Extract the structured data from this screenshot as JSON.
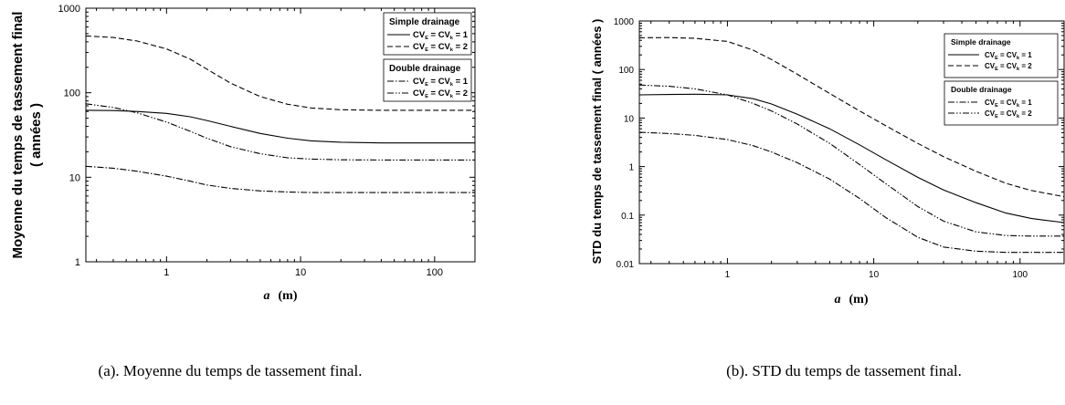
{
  "chart_data": [
    {
      "type": "line",
      "panel": "a",
      "ylabel_line1": "Moyenne du temps de tassement final",
      "ylabel_line2": "( années )",
      "xlabel_var": "a",
      "xlabel_unit": "(m)",
      "xscale": "log",
      "yscale": "log",
      "xlim": [
        0.25,
        200
      ],
      "ylim": [
        1,
        1000
      ],
      "xticks": [
        {
          "v": 1,
          "label": "1"
        },
        {
          "v": 10,
          "label": "10"
        },
        {
          "v": 100,
          "label": "100"
        }
      ],
      "yticks": [
        {
          "v": 1,
          "label": "1"
        },
        {
          "v": 10,
          "label": "10"
        },
        {
          "v": 100,
          "label": "100"
        },
        {
          "v": 1000,
          "label": "1000"
        }
      ],
      "grid": false,
      "legend_position": "top-right",
      "legend_groups": [
        {
          "title": "Simple drainage",
          "entries": [
            {
              "series": 0,
              "label": "CVE = CVk = 1"
            },
            {
              "series": 1,
              "label": "CVE = CVk = 2"
            }
          ]
        },
        {
          "title": "Double drainage",
          "entries": [
            {
              "series": 2,
              "label": "CVE = CVk = 1"
            },
            {
              "series": 3,
              "label": "CVE = CVk = 2"
            }
          ]
        }
      ],
      "series": [
        {
          "drainage": "simple",
          "cv": 1,
          "dash": "solid",
          "x": [
            0.25,
            0.4,
            0.6,
            1,
            1.5,
            2,
            3,
            5,
            8,
            12,
            20,
            40,
            100,
            200
          ],
          "y": [
            62,
            61.5,
            60,
            57,
            52,
            47,
            40,
            33,
            29,
            27,
            26,
            25.5,
            25.5,
            25.5
          ]
        },
        {
          "drainage": "simple",
          "cv": 2,
          "dash": "dashed",
          "x": [
            0.25,
            0.4,
            0.6,
            1,
            1.5,
            2,
            3,
            5,
            8,
            12,
            20,
            40,
            100,
            200
          ],
          "y": [
            470,
            450,
            410,
            330,
            250,
            190,
            130,
            90,
            73,
            66,
            63,
            62,
            62,
            62
          ]
        },
        {
          "drainage": "double",
          "cv": 1,
          "dash": "dash-dot",
          "x": [
            0.25,
            0.4,
            0.6,
            1,
            1.5,
            2,
            3,
            5,
            8,
            12,
            20,
            40,
            100,
            200
          ],
          "y": [
            13.5,
            12.8,
            11.8,
            10.3,
            9,
            8.1,
            7.4,
            6.9,
            6.7,
            6.6,
            6.6,
            6.6,
            6.6,
            6.6
          ]
        },
        {
          "drainage": "double",
          "cv": 2,
          "dash": "dash-dot-dot",
          "x": [
            0.25,
            0.4,
            0.6,
            1,
            1.5,
            2,
            3,
            5,
            8,
            12,
            20,
            40,
            100,
            200
          ],
          "y": [
            74,
            67,
            58,
            45,
            35,
            29,
            23,
            19,
            17,
            16.4,
            16.1,
            16,
            16,
            16
          ]
        }
      ]
    },
    {
      "type": "line",
      "panel": "b",
      "ylabel_line1": "STD du temps de tassement final ( années )",
      "xlabel_var": "a",
      "xlabel_unit": "(m)",
      "xscale": "log",
      "yscale": "log",
      "xlim": [
        0.25,
        200
      ],
      "ylim": [
        0.01,
        1000
      ],
      "xticks": [
        {
          "v": 1,
          "label": "1"
        },
        {
          "v": 10,
          "label": "10"
        },
        {
          "v": 100,
          "label": "100"
        }
      ],
      "yticks": [
        {
          "v": 0.01,
          "label": "0.01"
        },
        {
          "v": 0.1,
          "label": "0.1"
        },
        {
          "v": 1,
          "label": "1"
        },
        {
          "v": 10,
          "label": "10"
        },
        {
          "v": 100,
          "label": "100"
        },
        {
          "v": 1000,
          "label": "1000"
        }
      ],
      "grid": false,
      "legend_position": "top-right",
      "legend_groups": [
        {
          "title": "Simple drainage",
          "entries": [
            {
              "series": 0,
              "label": "CVE = CVk = 1"
            },
            {
              "series": 1,
              "label": "CVE = CVk = 2"
            }
          ]
        },
        {
          "title": "Double drainage",
          "entries": [
            {
              "series": 2,
              "label": "CVE = CVk = 1"
            },
            {
              "series": 3,
              "label": "CVE = CVk = 2"
            }
          ]
        }
      ],
      "series": [
        {
          "drainage": "simple",
          "cv": 1,
          "dash": "solid",
          "x": [
            0.25,
            0.4,
            0.6,
            1,
            1.5,
            2,
            3,
            5,
            8,
            12,
            20,
            30,
            50,
            80,
            120,
            200
          ],
          "y": [
            30,
            30.5,
            31,
            30,
            25,
            19.5,
            12,
            6,
            2.8,
            1.4,
            0.6,
            0.33,
            0.18,
            0.11,
            0.085,
            0.07
          ]
        },
        {
          "drainage": "simple",
          "cv": 2,
          "dash": "dashed",
          "x": [
            0.25,
            0.4,
            0.6,
            1,
            1.5,
            2,
            3,
            5,
            8,
            12,
            20,
            30,
            50,
            80,
            120,
            200
          ],
          "y": [
            450,
            455,
            440,
            380,
            250,
            160,
            80,
            32,
            14,
            7,
            3,
            1.6,
            0.8,
            0.45,
            0.32,
            0.24
          ]
        },
        {
          "drainage": "double",
          "cv": 1,
          "dash": "dash-dot",
          "x": [
            0.25,
            0.4,
            0.6,
            1,
            1.5,
            2,
            3,
            5,
            8,
            12,
            20,
            30,
            50,
            80,
            120,
            200
          ],
          "y": [
            5.1,
            4.8,
            4.4,
            3.6,
            2.7,
            2.0,
            1.2,
            0.55,
            0.22,
            0.09,
            0.035,
            0.022,
            0.018,
            0.017,
            0.017,
            0.017
          ]
        },
        {
          "drainage": "double",
          "cv": 2,
          "dash": "dash-dot-dot",
          "x": [
            0.25,
            0.4,
            0.6,
            1,
            1.5,
            2,
            3,
            5,
            8,
            12,
            20,
            30,
            50,
            80,
            120,
            200
          ],
          "y": [
            48,
            45,
            40,
            30,
            20,
            14,
            7.5,
            3,
            1.1,
            0.45,
            0.15,
            0.075,
            0.045,
            0.038,
            0.037,
            0.037
          ]
        }
      ]
    }
  ],
  "captions": {
    "a": "(a). Moyenne du temps de tassement final.",
    "b": "(b). STD du temps de tassement final."
  }
}
